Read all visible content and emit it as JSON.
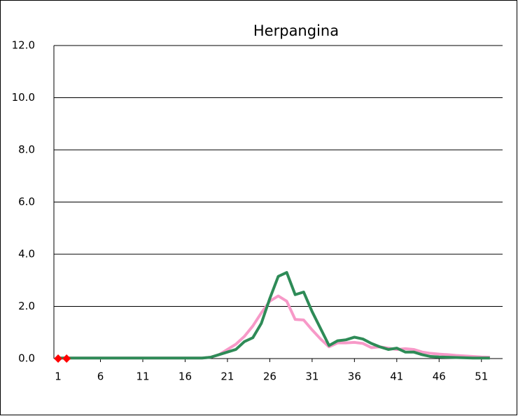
{
  "chart_data": {
    "type": "line",
    "title": "Herpangina",
    "x": [
      1,
      2,
      3,
      4,
      5,
      6,
      7,
      8,
      9,
      10,
      11,
      12,
      13,
      14,
      15,
      16,
      17,
      18,
      19,
      20,
      21,
      22,
      23,
      24,
      25,
      26,
      27,
      28,
      29,
      30,
      31,
      32,
      33,
      34,
      35,
      36,
      37,
      38,
      39,
      40,
      41,
      42,
      43,
      44,
      45,
      46,
      47,
      48,
      49,
      50,
      51,
      52
    ],
    "series": [
      {
        "color": "#f799c8",
        "width": 4,
        "values": [
          0.02,
          0.02,
          0.02,
          0.02,
          0.02,
          0.02,
          0.02,
          0.02,
          0.02,
          0.02,
          0.02,
          0.02,
          0.02,
          0.02,
          0.02,
          0.02,
          0.02,
          0.02,
          0.05,
          0.15,
          0.35,
          0.55,
          0.85,
          1.25,
          1.75,
          2.2,
          2.4,
          2.2,
          1.5,
          1.48,
          1.1,
          0.75,
          0.45,
          0.6,
          0.6,
          0.62,
          0.58,
          0.42,
          0.45,
          0.4,
          0.35,
          0.38,
          0.35,
          0.25,
          0.2,
          0.17,
          0.15,
          0.12,
          0.1,
          0.08,
          0.06,
          0.05
        ]
      },
      {
        "color": "#2e8b57",
        "width": 4,
        "values": [
          0.02,
          0.02,
          0.02,
          0.02,
          0.02,
          0.02,
          0.02,
          0.02,
          0.02,
          0.02,
          0.02,
          0.02,
          0.02,
          0.02,
          0.02,
          0.02,
          0.02,
          0.02,
          0.05,
          0.15,
          0.25,
          0.35,
          0.65,
          0.8,
          1.35,
          2.3,
          3.15,
          3.3,
          2.45,
          2.55,
          1.8,
          1.15,
          0.5,
          0.68,
          0.72,
          0.82,
          0.75,
          0.58,
          0.45,
          0.35,
          0.4,
          0.25,
          0.25,
          0.15,
          0.08,
          0.06,
          0.05,
          0.04,
          0.03,
          0.02,
          0.02,
          0.02
        ]
      },
      {
        "color": "#ff0000",
        "marker": "diamond",
        "values": [
          0,
          0,
          null,
          null,
          null,
          null,
          null,
          null,
          null,
          null,
          null,
          null,
          null,
          null,
          null,
          null,
          null,
          null,
          null,
          null,
          null,
          null,
          null,
          null,
          null,
          null,
          null,
          null,
          null,
          null,
          null,
          null,
          null,
          null,
          null,
          null,
          null,
          null,
          null,
          null,
          null,
          null,
          null,
          null,
          null,
          null,
          null,
          null,
          null,
          null,
          null,
          null
        ]
      }
    ],
    "xlim": [
      0.5,
      53.5
    ],
    "xticks": [
      1,
      6,
      11,
      16,
      21,
      26,
      31,
      36,
      41,
      46,
      51
    ],
    "ylim": [
      0,
      12
    ],
    "yticks": [
      {
        "value": 0,
        "label": "0.0"
      },
      {
        "value": 2,
        "label": "2.0"
      },
      {
        "value": 4,
        "label": "4.0"
      },
      {
        "value": 6,
        "label": "6.0"
      },
      {
        "value": 8,
        "label": "8.0"
      },
      {
        "value": 10,
        "label": "10.0"
      },
      {
        "value": 12,
        "label": "12.0"
      }
    ],
    "grid": true
  }
}
